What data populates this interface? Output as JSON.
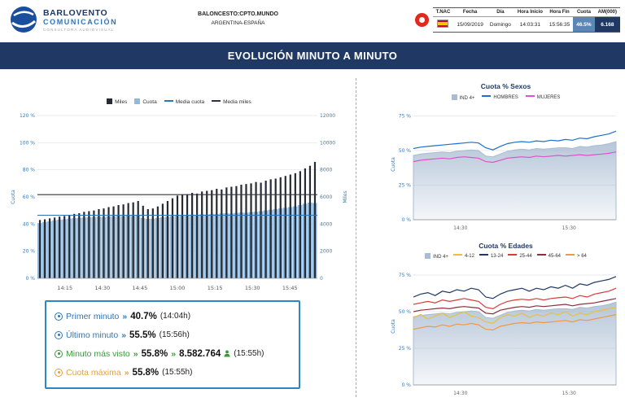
{
  "colors": {
    "navy": "#1f3864",
    "accent_blue": "#2e75b6",
    "tick_blue": "#3a7abd",
    "box_border": "#2e86c1",
    "green": "#3a9a3a",
    "orange": "#e8a03a",
    "cuota_cell_bg": "#5b87b8",
    "am_cell_bg": "#1f3864",
    "channel_red": "#e02a20"
  },
  "header": {
    "brand": {
      "line1": "BARLOVENTO",
      "line2": "COMUNICACIÓN",
      "line3": "CONSULTORA AUDIOVISUAL"
    },
    "program": {
      "line1": "BALONCESTO:CPTO.MUNDO",
      "line2": "ARGENTINA-ESPAÑA"
    },
    "info_table": {
      "columns": [
        "T.NAC",
        "Fecha",
        "Día",
        "Hora Inicio",
        "Hora Fin",
        "Cuota",
        "AM(000)"
      ],
      "row": {
        "fecha": "15/09/2019",
        "dia": "Domingo",
        "hora_inicio": "14:03:31",
        "hora_fin": "15:56:35",
        "cuota": "46.5%",
        "am000": "6.168"
      }
    }
  },
  "title_bar": {
    "title": "EVOLUCIÓN MINUTO A MINUTO"
  },
  "summary_box": {
    "sep": "»",
    "rows": [
      {
        "label": "Primer minuto",
        "value": "40.7%",
        "time": "(14:04h)"
      },
      {
        "label": "Último minuto",
        "value": "55.5%",
        "time": "(15:56h)"
      },
      {
        "label": "Minuto más visto",
        "value": "55.8%",
        "value2": "8.582.764",
        "time": "(15:55h)"
      },
      {
        "label": "Cuota máxima",
        "value": "55.8%",
        "time": "(15:55h)"
      }
    ]
  },
  "chart_data": [
    {
      "type": "bar",
      "title": "Evolución minuto a minuto",
      "x_start": "14:04",
      "x_end": "15:56",
      "ylabel_left": "Cuota",
      "ylabel_right": "Miles",
      "ylim_left": [
        0,
        120
      ],
      "yticks_left": [
        "0 %",
        "20 %",
        "40 %",
        "60 %",
        "80 %",
        "100 %",
        "120 %"
      ],
      "ylim_right": [
        0,
        12000
      ],
      "yticks_right": [
        "0",
        "2000",
        "4000",
        "6000",
        "8000",
        "10000",
        "12000"
      ],
      "xticks": [
        {
          "label": "14:15",
          "t": 0.098
        },
        {
          "label": "14:30",
          "t": 0.232
        },
        {
          "label": "14:45",
          "t": 0.366
        },
        {
          "label": "15:00",
          "t": 0.5
        },
        {
          "label": "15:15",
          "t": 0.634
        },
        {
          "label": "15:30",
          "t": 0.768
        },
        {
          "label": "15:45",
          "t": 0.902
        }
      ],
      "series": [
        {
          "name": "Cuota",
          "axis": "left",
          "color": "#90b9dd",
          "values": [
            40.7,
            41.5,
            42.0,
            42.8,
            43.2,
            43.5,
            44.0,
            44.3,
            44.6,
            44.8,
            45.0,
            45.2,
            45.5,
            45.3,
            45.6,
            45.8,
            46.0,
            45.9,
            46.2,
            46.0,
            46.3,
            44.5,
            43.8,
            44.0,
            44.5,
            45.0,
            45.5,
            46.0,
            46.5,
            46.3,
            46.8,
            47.0,
            46.8,
            47.2,
            47.0,
            47.5,
            47.3,
            47.8,
            48.0,
            47.8,
            48.2,
            48.5,
            48.3,
            48.8,
            49.0,
            49.5,
            50.0,
            50.5,
            51.0,
            51.5,
            52.0,
            52.5,
            53.0,
            54.0,
            55.0,
            55.8,
            55.5
          ]
        },
        {
          "name": "Miles",
          "axis": "right",
          "color": "#262b33",
          "values": [
            4300,
            4350,
            4420,
            4480,
            4550,
            4600,
            4680,
            4750,
            4800,
            4900,
            4950,
            5000,
            5100,
            5150,
            5250,
            5300,
            5400,
            5450,
            5550,
            5600,
            5700,
            5350,
            5100,
            5150,
            5300,
            5500,
            5700,
            5900,
            6100,
            6150,
            6200,
            6300,
            6250,
            6400,
            6450,
            6500,
            6600,
            6550,
            6700,
            6750,
            6800,
            6900,
            6950,
            7000,
            7100,
            7050,
            7200,
            7300,
            7350,
            7450,
            7550,
            7650,
            7750,
            7900,
            8100,
            8300,
            8583
          ]
        }
      ],
      "avg_lines": [
        {
          "name": "Media cuota",
          "axis": "left",
          "value": 46.5,
          "color": "#2e75b6"
        },
        {
          "name": "Media miles",
          "axis": "right",
          "value": 6168,
          "color": "#30343c"
        }
      ]
    },
    {
      "type": "line",
      "title": "Cuota % Sexos",
      "ylabel": "Cuota",
      "ylim": [
        0,
        80
      ],
      "ytick_vals": [
        0,
        25,
        50,
        75
      ],
      "yticks": [
        "0 %",
        "25 %",
        "50 %",
        "75 %"
      ],
      "xticks": [
        {
          "label": "14:30",
          "t": 0.232
        },
        {
          "label": "15:30",
          "t": 0.768
        }
      ],
      "series": [
        {
          "name": "IND 4+",
          "style": "area",
          "color": "#a9bcd2",
          "values": [
            46.5,
            47.5,
            48,
            48.5,
            49,
            48.5,
            49.5,
            50,
            50.5,
            50,
            46,
            45.5,
            47.5,
            49.5,
            50.5,
            51,
            50.5,
            51.5,
            51,
            51.5,
            52,
            52,
            51.5,
            53,
            52.5,
            53.5,
            54,
            55,
            56.5
          ]
        },
        {
          "name": "HOMBRES",
          "style": "line",
          "color": "#1e6fd0",
          "values": [
            51.5,
            52.5,
            53,
            53.5,
            54,
            54.5,
            55,
            55.5,
            56,
            55.5,
            52,
            50.5,
            53,
            55,
            56,
            56.5,
            56,
            57,
            56.5,
            57.5,
            57,
            58,
            57.5,
            59,
            58.5,
            60,
            61,
            62,
            64
          ]
        },
        {
          "name": "MUJERES",
          "style": "line",
          "color": "#df52cc",
          "values": [
            42,
            43,
            43.5,
            44,
            44.5,
            44,
            45,
            45.5,
            45,
            44.5,
            42,
            41.5,
            43,
            44.5,
            45,
            45.5,
            45,
            46,
            45.5,
            46,
            46.5,
            46,
            46.5,
            47,
            46.5,
            47,
            47.5,
            48,
            49
          ]
        }
      ]
    },
    {
      "type": "line",
      "title": "Cuota % Edades",
      "ylabel": "Cuota",
      "ylim": [
        0,
        80
      ],
      "ytick_vals": [
        0,
        25,
        50,
        75
      ],
      "yticks": [
        "0 %",
        "25 %",
        "50 %",
        "75 %"
      ],
      "xticks": [
        {
          "label": "14:30",
          "t": 0.232
        },
        {
          "label": "15:30",
          "t": 0.768
        }
      ],
      "series": [
        {
          "name": "IND 4+",
          "style": "area",
          "color": "#a9bcd2",
          "values": [
            46.5,
            47.5,
            48,
            48.5,
            49,
            48.5,
            49.5,
            50,
            50.5,
            50,
            46,
            45.5,
            47.5,
            49.5,
            50.5,
            51,
            50.5,
            51.5,
            51,
            51.5,
            52,
            52,
            51.5,
            53,
            52.5,
            53.5,
            54,
            55,
            56.5
          ]
        },
        {
          "name": "4-12",
          "style": "line",
          "color": "#e8c23a",
          "values": [
            46,
            48,
            45,
            47,
            49,
            46,
            48,
            50,
            47,
            46,
            43,
            42,
            46,
            48,
            47,
            49,
            46,
            48,
            47,
            49,
            48,
            50,
            47,
            49,
            48,
            50,
            51,
            52,
            53
          ]
        },
        {
          "name": "13-24",
          "style": "line",
          "color": "#1f3864",
          "values": [
            60,
            62,
            63,
            61,
            64,
            63,
            65,
            64,
            66,
            65,
            60,
            59,
            62,
            64,
            65,
            66,
            64,
            66,
            65,
            67,
            66,
            68,
            66,
            69,
            68,
            70,
            71,
            72,
            74
          ]
        },
        {
          "name": "25-44",
          "style": "line",
          "color": "#d93a3a",
          "values": [
            55,
            56,
            57,
            56,
            58,
            57,
            58,
            59,
            58,
            57,
            53,
            52,
            55,
            57,
            58,
            58.5,
            58,
            59,
            58,
            59,
            59.5,
            60,
            59,
            61,
            60,
            62,
            63,
            64,
            66
          ]
        },
        {
          "name": "45-64",
          "style": "line",
          "color": "#8e2f3f",
          "values": [
            50,
            51,
            51.5,
            52,
            52.5,
            52,
            53,
            53.5,
            53,
            52.5,
            49,
            48.5,
            51,
            52,
            53,
            53.5,
            53,
            54,
            53.5,
            54,
            54.5,
            55,
            54,
            55,
            55.5,
            56,
            57,
            58,
            59
          ]
        },
        {
          "name": "> 64",
          "style": "line",
          "color": "#ef9a3d",
          "values": [
            38,
            39,
            40,
            39.5,
            41,
            40,
            41.5,
            41,
            42,
            41,
            38,
            37.5,
            40,
            41,
            42,
            42.5,
            42,
            43,
            42.5,
            43,
            43.5,
            44,
            43,
            44.5,
            44,
            45,
            46,
            47,
            48
          ]
        }
      ]
    }
  ]
}
